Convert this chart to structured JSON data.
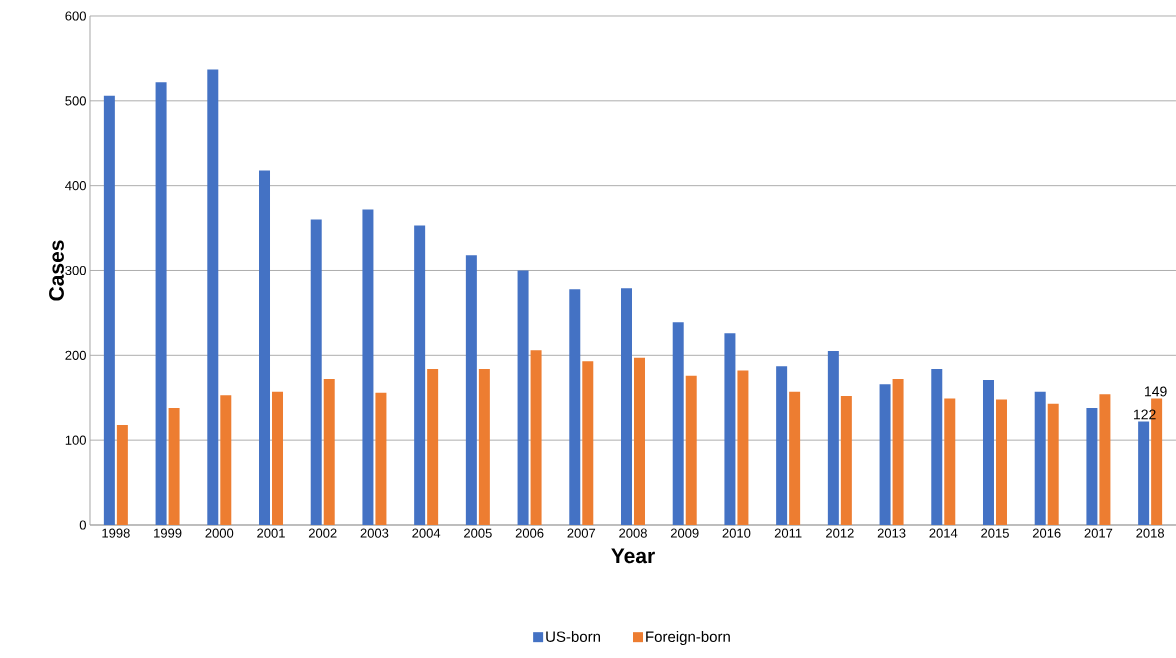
{
  "chart_data": {
    "type": "bar",
    "xlabel": "Year",
    "ylabel": "Cases",
    "categories": [
      "1998",
      "1999",
      "2000",
      "2001",
      "2002",
      "2003",
      "2004",
      "2005",
      "2006",
      "2007",
      "2008",
      "2009",
      "2010",
      "2011",
      "2012",
      "2013",
      "2014",
      "2015",
      "2016",
      "2017",
      "2018"
    ],
    "series": [
      {
        "name": "US-born",
        "color": "#4472c4",
        "values": [
          506,
          522,
          537,
          418,
          360,
          372,
          353,
          318,
          300,
          278,
          279,
          239,
          226,
          187,
          205,
          166,
          184,
          171,
          157,
          138,
          122
        ],
        "value_labels": [
          null,
          null,
          null,
          null,
          null,
          null,
          null,
          null,
          null,
          null,
          null,
          null,
          null,
          null,
          null,
          null,
          null,
          null,
          null,
          null,
          "122"
        ]
      },
      {
        "name": "Foreign-born",
        "color": "#ed7d31",
        "values": [
          118,
          138,
          153,
          157,
          172,
          156,
          184,
          184,
          206,
          193,
          197,
          176,
          182,
          157,
          152,
          172,
          149,
          148,
          143,
          154,
          149
        ],
        "value_labels": [
          null,
          null,
          null,
          null,
          null,
          null,
          null,
          null,
          null,
          null,
          null,
          null,
          null,
          null,
          null,
          null,
          null,
          null,
          null,
          null,
          "149"
        ]
      }
    ],
    "ylim": [
      0,
      600
    ],
    "yticks": [
      0,
      100,
      200,
      300,
      400,
      500,
      600
    ],
    "grid": "y",
    "legend": "bottom"
  }
}
